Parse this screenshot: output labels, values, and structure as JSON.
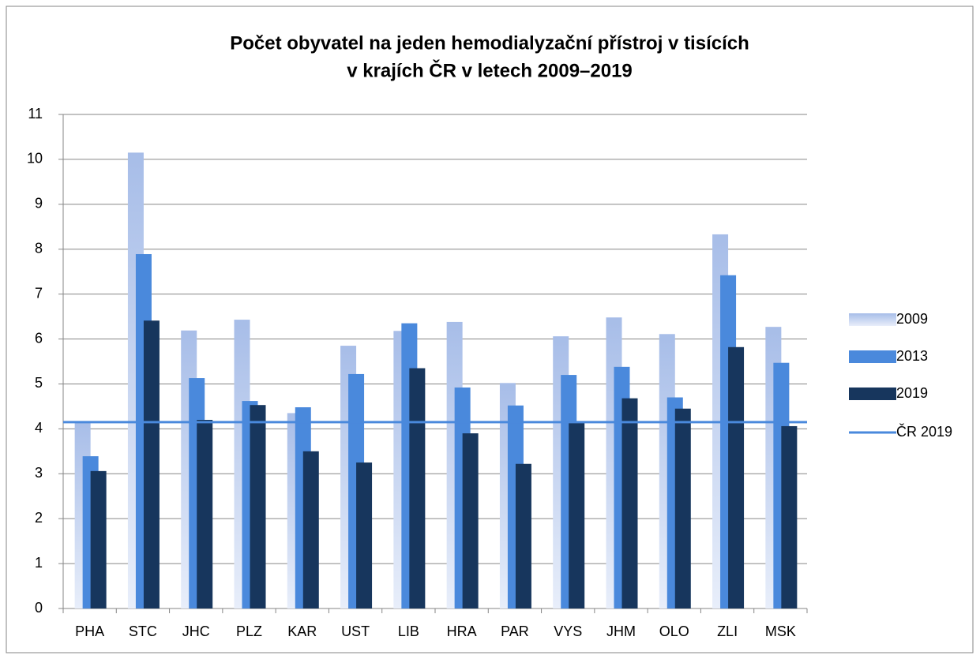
{
  "chart_data": {
    "type": "bar",
    "title": [
      "Počet obyvatel na jeden hemodialyzační přístroj v tisících",
      "v krajích ČR v letech 2009–2019"
    ],
    "categories": [
      "PHA",
      "STC",
      "JHC",
      "PLZ",
      "KAR",
      "UST",
      "LIB",
      "HRA",
      "PAR",
      "VYS",
      "JHM",
      "OLO",
      "ZLI",
      "MSK"
    ],
    "series": [
      {
        "name": "2009",
        "color": "#a7bde8",
        "values": [
          4.17,
          10.15,
          6.19,
          6.43,
          4.35,
          5.85,
          6.18,
          6.38,
          5.02,
          6.06,
          6.48,
          6.11,
          8.33,
          6.27
        ]
      },
      {
        "name": "2013",
        "color": "#4a89dc",
        "values": [
          3.39,
          7.89,
          5.13,
          4.62,
          4.48,
          5.22,
          6.35,
          4.92,
          4.52,
          5.2,
          5.38,
          4.7,
          7.42,
          5.47
        ]
      },
      {
        "name": "2019",
        "color": "#17365d",
        "values": [
          3.06,
          6.41,
          4.2,
          4.53,
          3.5,
          3.25,
          5.35,
          3.9,
          3.22,
          4.13,
          4.68,
          4.45,
          5.82,
          4.06
        ]
      }
    ],
    "reference_lines": [
      {
        "name": "ČR 2019",
        "value": 4.15,
        "color": "#4a89dc"
      }
    ],
    "ylim": [
      0,
      11
    ],
    "yticks": [
      0,
      1,
      2,
      3,
      4,
      5,
      6,
      7,
      8,
      9,
      10,
      11
    ],
    "grid": true,
    "legend": "right"
  }
}
